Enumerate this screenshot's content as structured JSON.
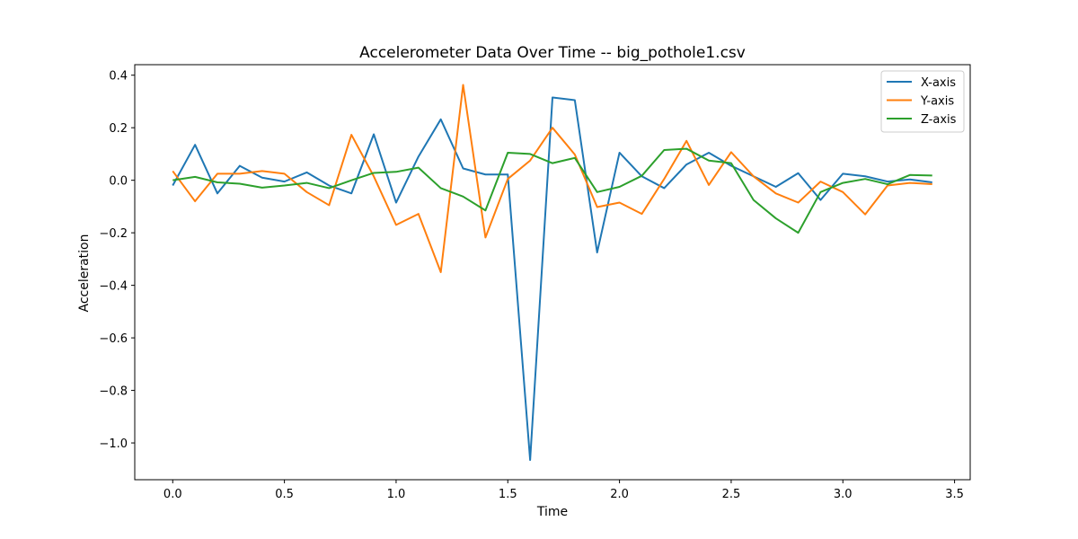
{
  "chart_data": {
    "type": "line",
    "title": "Accelerometer Data Over Time -- big_pothole1.csv",
    "xlabel": "Time",
    "ylabel": "Acceleration",
    "xlim": [
      -0.17,
      3.57
    ],
    "ylim": [
      -1.14,
      0.44
    ],
    "xticks": [
      0.0,
      0.5,
      1.0,
      1.5,
      2.0,
      2.5,
      3.0,
      3.5
    ],
    "xtick_labels": [
      "0.0",
      "0.5",
      "1.0",
      "1.5",
      "2.0",
      "2.5",
      "3.0",
      "3.5"
    ],
    "yticks": [
      0.4,
      0.2,
      0.0,
      -0.2,
      -0.4,
      -0.6,
      -0.8,
      -1.0
    ],
    "ytick_labels": [
      "0.4",
      "0.2",
      "0.0",
      "−0.2",
      "−0.4",
      "−0.6",
      "−0.8",
      "−1.0"
    ],
    "legend_position": "top-right",
    "grid": false,
    "x": [
      0.0,
      0.1,
      0.2,
      0.3,
      0.4,
      0.5,
      0.6,
      0.7,
      0.8,
      0.9,
      1.0,
      1.1,
      1.2,
      1.3,
      1.4,
      1.5,
      1.6,
      1.7,
      1.8,
      1.9,
      2.0,
      2.1,
      2.2,
      2.3,
      2.4,
      2.5,
      2.6,
      2.7,
      2.8,
      2.9,
      3.0,
      3.1,
      3.2,
      3.3,
      3.4
    ],
    "series": [
      {
        "name": "X-axis",
        "color": "#1f77b4",
        "values": [
          -0.02,
          0.135,
          -0.05,
          0.055,
          0.01,
          -0.005,
          0.03,
          -0.02,
          -0.05,
          0.175,
          -0.085,
          0.09,
          0.232,
          0.045,
          0.022,
          0.022,
          -1.065,
          0.315,
          0.305,
          -0.275,
          0.105,
          0.015,
          -0.03,
          0.06,
          0.105,
          0.055,
          0.015,
          -0.025,
          0.027,
          -0.075,
          0.025,
          0.015,
          -0.005,
          0.003,
          -0.008
        ]
      },
      {
        "name": "Y-axis",
        "color": "#ff7f0e",
        "values": [
          0.035,
          -0.08,
          0.025,
          0.025,
          0.035,
          0.025,
          -0.045,
          -0.095,
          0.173,
          0.015,
          -0.17,
          -0.128,
          -0.35,
          0.363,
          -0.218,
          0.005,
          0.075,
          0.2,
          0.098,
          -0.102,
          -0.085,
          -0.128,
          0.005,
          0.15,
          -0.018,
          0.107,
          0.015,
          -0.05,
          -0.085,
          -0.005,
          -0.045,
          -0.13,
          -0.02,
          -0.01,
          -0.015
        ]
      },
      {
        "name": "Z-axis",
        "color": "#2ca02c",
        "values": [
          0.0,
          0.013,
          -0.008,
          -0.013,
          -0.028,
          -0.02,
          -0.01,
          -0.03,
          0.0,
          0.028,
          0.032,
          0.048,
          -0.03,
          -0.062,
          -0.115,
          0.105,
          0.1,
          0.065,
          0.085,
          -0.045,
          -0.025,
          0.017,
          0.115,
          0.12,
          0.075,
          0.065,
          -0.075,
          -0.145,
          -0.2,
          -0.045,
          -0.01,
          0.005,
          -0.015,
          0.02,
          0.018
        ]
      }
    ]
  }
}
